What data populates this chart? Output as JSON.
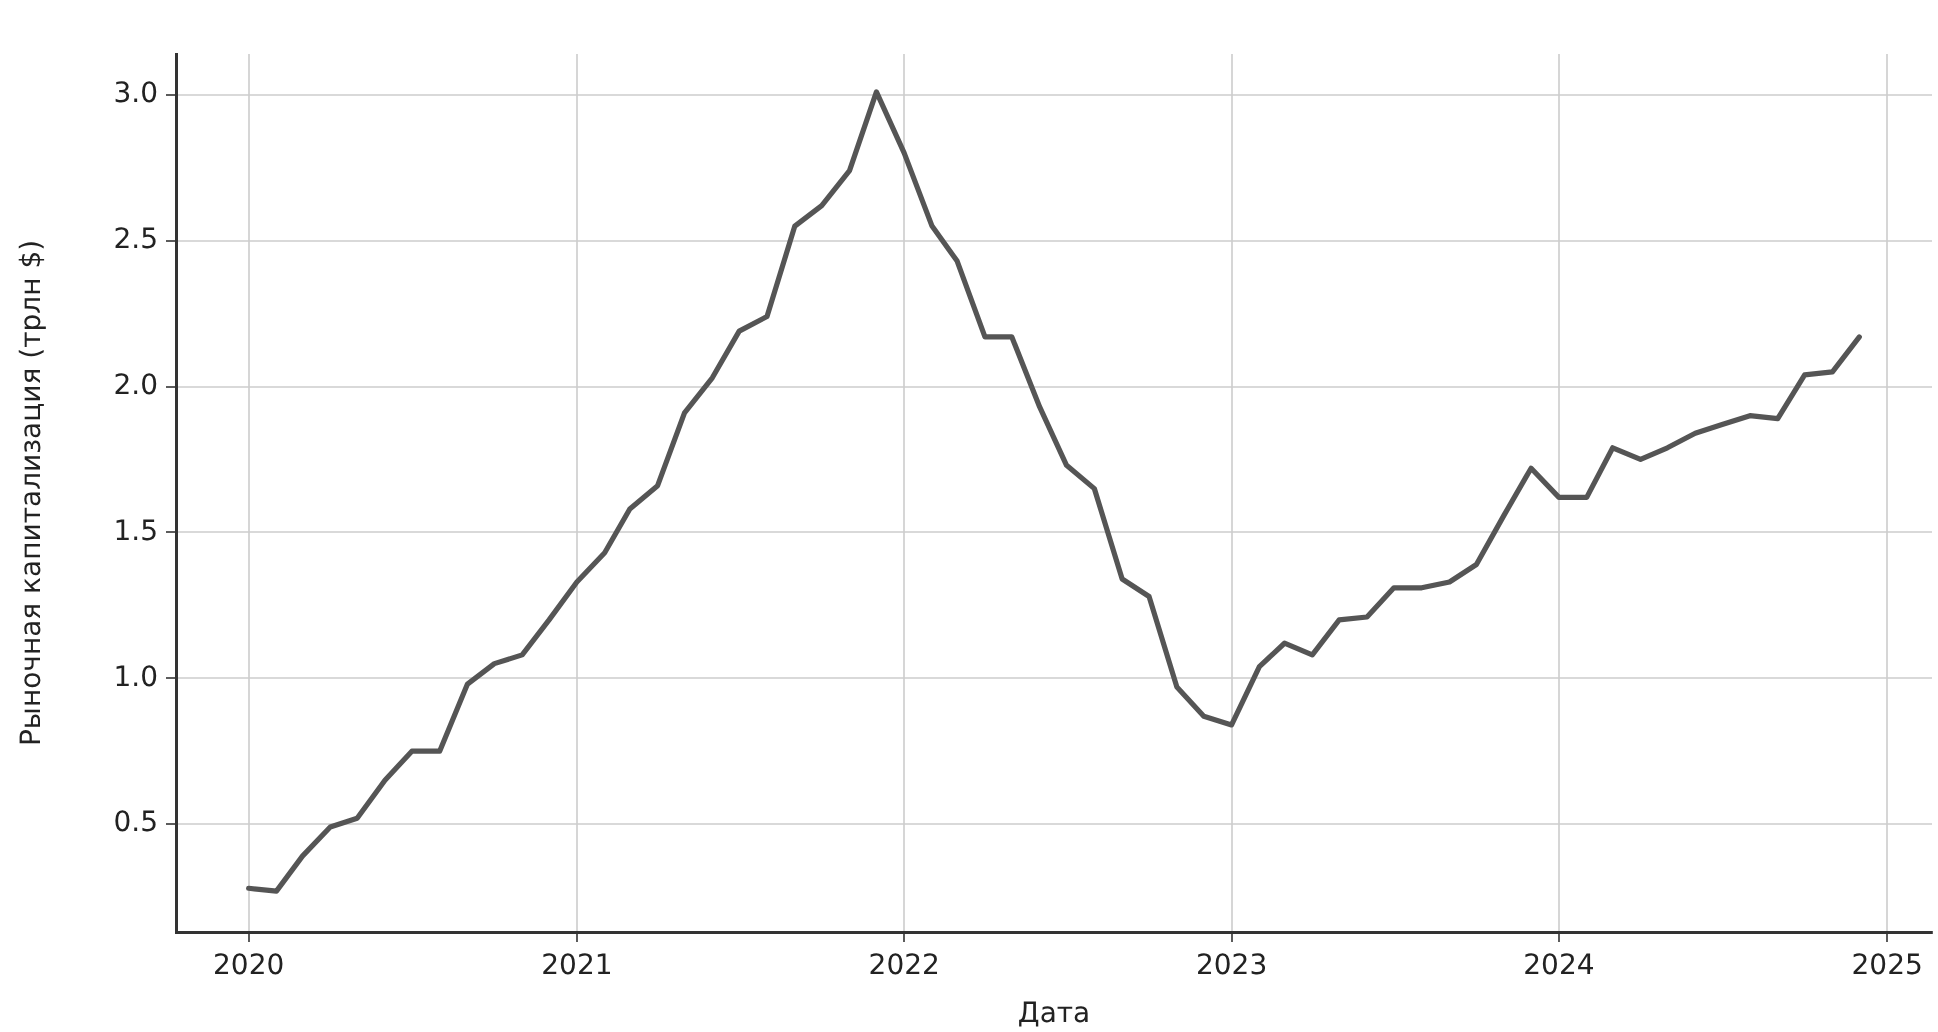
{
  "chart_data": {
    "type": "line",
    "xlabel": "Дата",
    "ylabel": "Рыночная капитализация (трлн $)",
    "x": [
      "2020-01",
      "2020-02",
      "2020-03",
      "2020-04",
      "2020-05",
      "2020-06",
      "2020-07",
      "2020-08",
      "2020-09",
      "2020-10",
      "2020-11",
      "2020-12",
      "2021-01",
      "2021-02",
      "2021-03",
      "2021-04",
      "2021-05",
      "2021-06",
      "2021-07",
      "2021-08",
      "2021-09",
      "2021-10",
      "2021-11",
      "2021-12",
      "2022-01",
      "2022-02",
      "2022-03",
      "2022-04",
      "2022-05",
      "2022-06",
      "2022-07",
      "2022-08",
      "2022-09",
      "2022-10",
      "2022-11",
      "2022-12",
      "2023-01",
      "2023-02",
      "2023-03",
      "2023-04",
      "2023-05",
      "2023-06",
      "2023-07",
      "2023-08",
      "2023-09",
      "2023-10",
      "2023-11",
      "2023-12",
      "2024-01",
      "2024-02",
      "2024-03",
      "2024-04",
      "2024-05",
      "2024-06",
      "2024-07",
      "2024-08",
      "2024-09",
      "2024-10",
      "2024-11",
      "2024-12"
    ],
    "series": [
      {
        "color": "#555555",
        "values": [
          0.28,
          0.27,
          0.39,
          0.49,
          0.52,
          0.65,
          0.75,
          0.75,
          0.98,
          1.05,
          1.08,
          1.2,
          1.33,
          1.43,
          1.58,
          1.66,
          1.91,
          2.03,
          2.19,
          2.24,
          2.55,
          2.62,
          2.74,
          3.01,
          2.8,
          2.55,
          2.43,
          2.17,
          2.17,
          1.93,
          1.73,
          1.65,
          1.34,
          1.28,
          0.97,
          0.87,
          0.84,
          1.04,
          1.12,
          1.08,
          1.2,
          1.21,
          1.31,
          1.31,
          1.33,
          1.39,
          1.56,
          1.72,
          1.62,
          1.62,
          1.79,
          1.75,
          1.79,
          1.84,
          1.87,
          1.9,
          1.89,
          2.04,
          2.05,
          2.17
        ]
      }
    ],
    "xlim": [
      "2019-10-12",
      "2025-02-20"
    ],
    "xticks": [
      "2020",
      "2021",
      "2022",
      "2023",
      "2024",
      "2025"
    ],
    "ylim": [
      0.13,
      3.14
    ],
    "yticks": [
      {
        "value": 0.5,
        "label": "0.5"
      },
      {
        "value": 1,
        "label": "1.0"
      },
      {
        "value": 1.5,
        "label": "1.5"
      },
      {
        "value": 2,
        "label": "2.0"
      },
      {
        "value": 2.5,
        "label": "2.5"
      },
      {
        "value": 3,
        "label": "3.0"
      }
    ],
    "grid": true,
    "legend": false,
    "marker": "none",
    "line_style": "solid"
  }
}
